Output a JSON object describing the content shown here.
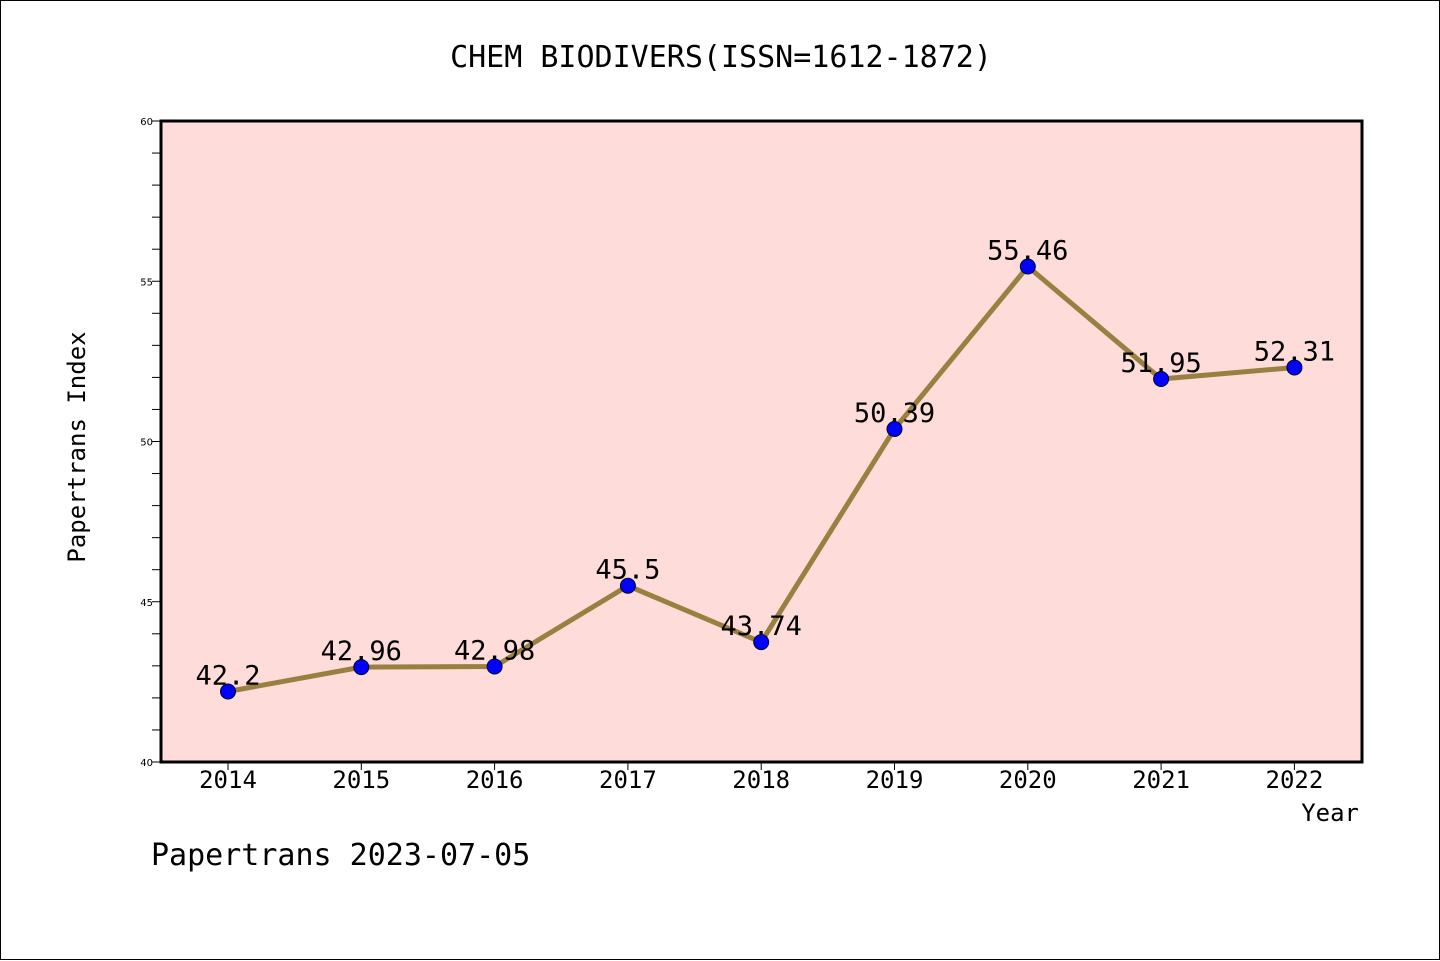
{
  "chart_data": {
    "type": "line",
    "title": "CHEM BIODIVERS(ISSN=1612-1872)",
    "xlabel": "Year",
    "ylabel": "Papertrans Index",
    "categories": [
      "2014",
      "2015",
      "2016",
      "2017",
      "2018",
      "2019",
      "2020",
      "2021",
      "2022"
    ],
    "values": [
      42.2,
      42.96,
      42.98,
      45.5,
      43.74,
      50.39,
      55.46,
      51.95,
      52.31
    ],
    "data_labels": [
      "42.2",
      "42.96",
      "42.98",
      "45.5",
      "43.74",
      "50.39",
      "55.46",
      "51.95",
      "52.31"
    ],
    "ylim": [
      40,
      60
    ],
    "yticks": [
      "40",
      "45",
      "50",
      "55",
      "60"
    ],
    "grid": false,
    "colors": {
      "plot_background": "#fddcd9",
      "line": "#9a8040",
      "marker": "#0000ff"
    }
  },
  "footer": {
    "text": "Papertrans 2023-07-05"
  }
}
